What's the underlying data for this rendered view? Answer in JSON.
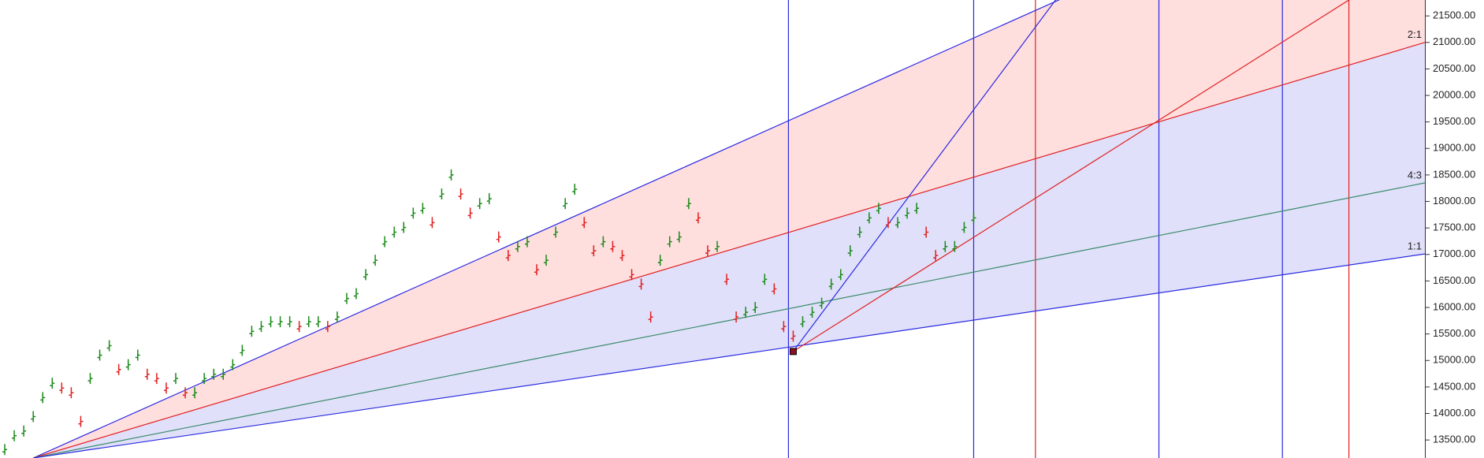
{
  "chart_data": {
    "type": "gann",
    "xlim": [
      0,
      300
    ],
    "ylim": [
      13160,
      21800
    ],
    "yticks": [
      {
        "value": 13500,
        "label": "13500.00"
      },
      {
        "value": 14000,
        "label": "14000.00"
      },
      {
        "value": 14500,
        "label": "14500.00"
      },
      {
        "value": 15000,
        "label": "15000.00"
      },
      {
        "value": 15500,
        "label": "15500.00"
      },
      {
        "value": 16000,
        "label": "16000.00"
      },
      {
        "value": 16500,
        "label": "16500.00"
      },
      {
        "value": 17000,
        "label": "17000.00"
      },
      {
        "value": 17500,
        "label": "17500.00"
      },
      {
        "value": 18000,
        "label": "18000.00"
      },
      {
        "value": 18500,
        "label": "18500.00"
      },
      {
        "value": 19000,
        "label": "19000.00"
      },
      {
        "value": 19500,
        "label": "19500.00"
      },
      {
        "value": 20000,
        "label": "20000.00"
      },
      {
        "value": 20500,
        "label": "20500.00"
      },
      {
        "value": 21000,
        "label": "21000.00"
      },
      {
        "value": 21500,
        "label": "21500.00"
      }
    ],
    "up_color": "#1a8a1a",
    "down_color": "#e02020",
    "x": [
      1,
      3,
      5,
      7,
      9,
      11,
      13,
      15,
      17,
      19,
      21,
      23,
      25,
      27,
      29,
      31,
      33,
      35,
      37,
      39,
      41,
      43,
      45,
      47,
      49,
      51,
      53,
      55,
      57,
      59,
      61,
      63,
      65,
      67,
      69,
      71,
      73,
      75,
      77,
      79,
      81,
      83,
      85,
      87,
      89,
      91,
      93,
      95,
      97,
      99,
      101,
      103,
      105,
      107,
      109,
      111,
      113,
      115,
      117,
      119,
      121,
      123,
      125,
      127,
      129,
      131,
      133,
      135,
      137,
      139,
      141,
      143,
      145,
      147,
      149,
      151,
      153,
      155,
      157,
      159,
      161,
      163,
      165,
      167,
      169,
      171,
      173,
      175,
      177,
      179,
      181,
      183,
      185,
      187,
      189,
      191,
      193,
      195,
      197,
      199,
      201,
      203,
      205
    ],
    "values": [
      13320,
      13580,
      13670,
      13940,
      14300,
      14570,
      14480,
      14390,
      13850,
      14660,
      15100,
      15280,
      14830,
      14920,
      15100,
      14740,
      14660,
      14480,
      14660,
      14390,
      14390,
      14660,
      14740,
      14740,
      14920,
      15190,
      15550,
      15640,
      15730,
      15730,
      15730,
      15640,
      15730,
      15730,
      15640,
      15820,
      16170,
      16260,
      16620,
      16890,
      17240,
      17420,
      17510,
      17780,
      17870,
      17600,
      18140,
      18500,
      18140,
      17780,
      17960,
      18050,
      17330,
      16980,
      17150,
      17240,
      16710,
      16890,
      17420,
      17960,
      18230,
      17600,
      17070,
      17240,
      17150,
      16980,
      16620,
      16440,
      15820,
      16890,
      17240,
      17330,
      17960,
      17690,
      17070,
      17150,
      16530,
      15820,
      15910,
      16000,
      16530,
      16350,
      15640,
      15460,
      15730,
      15910,
      16080,
      16440,
      16620,
      17070,
      17420,
      17690,
      17870,
      17600,
      17600,
      17780,
      17870,
      17420,
      16980,
      17150,
      17150,
      17510,
      17690
    ],
    "fan_lines": [
      {
        "from": [
          7,
          13160
        ],
        "to": [
          205,
          21083
        ],
        "color": "#2a2ae0"
      },
      {
        "from": [
          7,
          13160
        ],
        "to": [
          300,
          21000
        ],
        "color": "#e02020",
        "label": "2:1"
      },
      {
        "from": [
          7,
          13160
        ],
        "to": [
          300,
          18350
        ],
        "color": "#3a8a6a",
        "label": "4:3"
      },
      {
        "from": [
          7,
          13160
        ],
        "to": [
          300,
          17010
        ],
        "color": "#2a2ae0",
        "label": "1:1"
      },
      {
        "from": [
          167,
          15170
        ],
        "to": [
          191,
          18050
        ],
        "color": "#2a2ae0"
      },
      {
        "from": [
          167,
          15170
        ],
        "to": [
          284,
          21800
        ],
        "color": "#e02020"
      }
    ],
    "fills": [
      {
        "between": [
          0,
          1
        ],
        "color": "#ffdede"
      },
      {
        "between": [
          1,
          3
        ],
        "color": "#e0e0fa"
      }
    ],
    "pivot": [
      167,
      15170
    ],
    "pivot_color": "#8a1020",
    "verticals": [
      {
        "x": 166,
        "color": "#2a2ae0"
      },
      {
        "x": 205,
        "color": "#2a2ae0"
      },
      {
        "x": 218,
        "color": "#e02020"
      },
      {
        "x": 244,
        "color": "#2a2ae0"
      },
      {
        "x": 270,
        "color": "#2a2ae0"
      },
      {
        "x": 284,
        "color": "#e02020"
      }
    ]
  }
}
